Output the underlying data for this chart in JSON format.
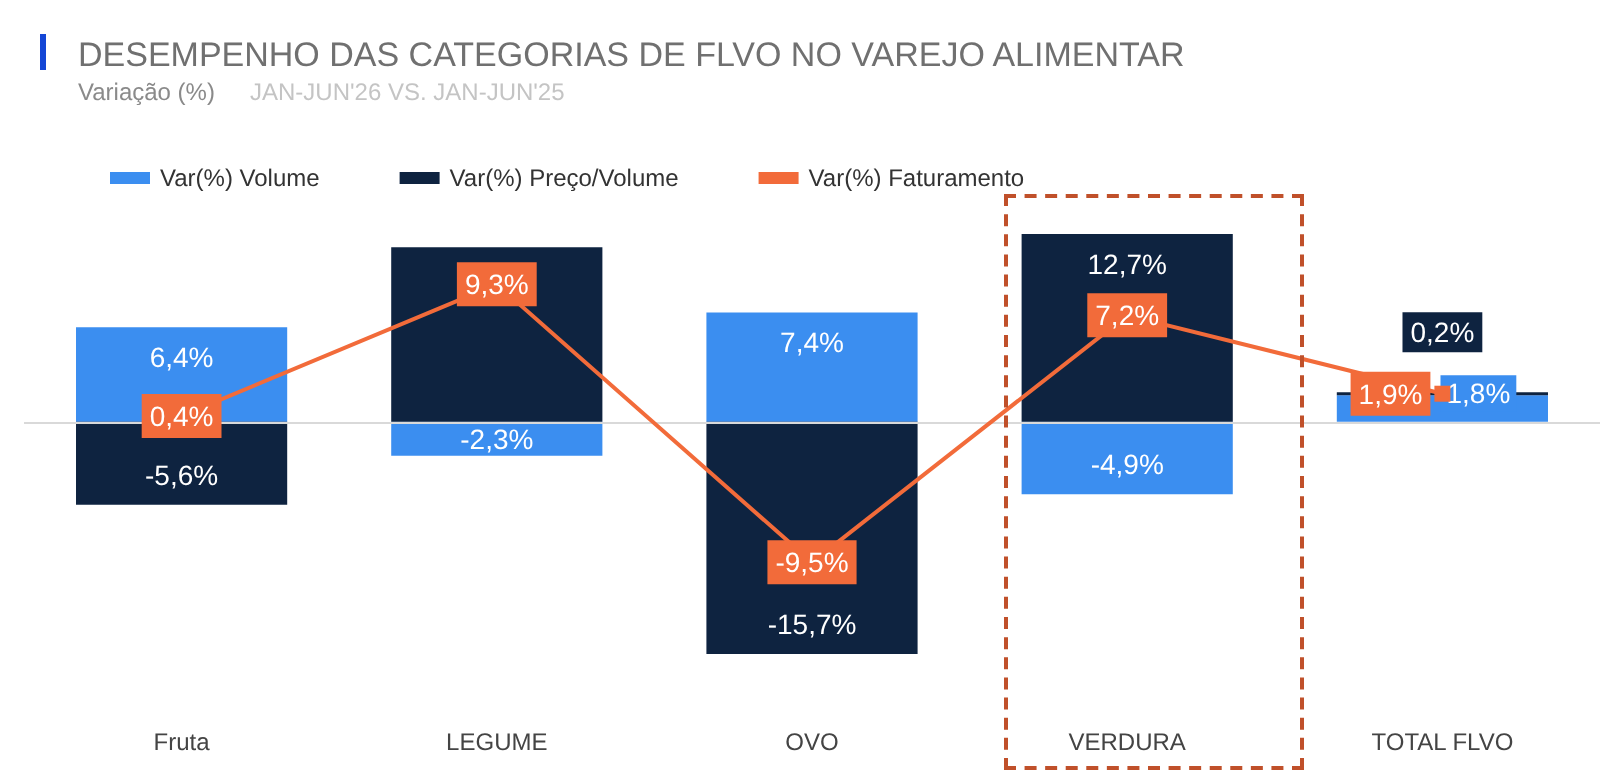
{
  "chart_data": {
    "type": "bar",
    "title": "DESEMPENHO DAS CATEGORIAS DE FLVO NO VAREJO ALIMENTAR",
    "subtitle": "Variação (%)",
    "annotations": [
      "JAN-JUN'26 VS. JAN-JUN'25"
    ],
    "categories": [
      "Fruta",
      "LEGUME",
      "OVO",
      "VERDURA",
      "TOTAL FLVO"
    ],
    "stacked": true,
    "legend": "top left",
    "grid": false,
    "tick_labels": "x",
    "series": [
      {
        "name": "Var(%) Volume",
        "color": "#3b8ef0",
        "values": [
          6.4,
          -2.3,
          7.4,
          -4.9,
          1.8
        ],
        "value_labels": [
          "6,4%",
          "-2,3%",
          "7,4%",
          "-4,9%",
          "1,8%"
        ]
      },
      {
        "name": "Var(%) Preço/Volume",
        "color": "#0e2340",
        "values": [
          -5.6,
          11.8,
          -15.7,
          12.7,
          0.2
        ],
        "value_labels": [
          "-5,6%",
          null,
          "-15,7%",
          "12,7%",
          "0,2%"
        ]
      },
      {
        "name": "Var(%) Faturamento",
        "type": "line",
        "color": "#f26b3a",
        "marker": "square",
        "values": [
          0.4,
          9.3,
          -9.5,
          7.2,
          1.9
        ],
        "value_labels": [
          "0,4%",
          "9,3%",
          "-9,5%",
          "7,2%",
          "1,9%"
        ]
      }
    ],
    "ref_lines": [
      {
        "axis": "y",
        "value": 0,
        "color": "#d9d9d9"
      }
    ]
  }
}
